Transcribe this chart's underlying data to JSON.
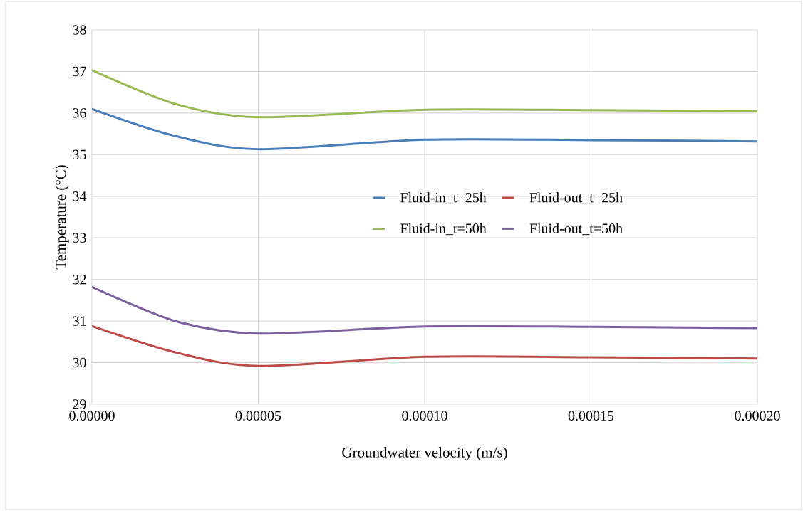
{
  "chart_data": {
    "type": "line",
    "xlabel": "Groundwater velocity (m/s)",
    "ylabel": "Temperature (°C)",
    "x": [
      0,
      2.5e-05,
      5e-05,
      0.0001,
      0.00015,
      0.0002
    ],
    "series": [
      {
        "name": "Fluid-in_t=25h",
        "color": "#4a7ebb",
        "values": [
          36.1,
          35.45,
          35.13,
          35.36,
          35.35,
          35.32
        ]
      },
      {
        "name": "Fluid-out_t=25h",
        "color": "#be4b48",
        "values": [
          30.88,
          30.25,
          29.92,
          30.14,
          30.13,
          30.1
        ]
      },
      {
        "name": "Fluid-in_t=50h",
        "color": "#98b954",
        "values": [
          37.03,
          36.22,
          35.9,
          36.08,
          36.07,
          36.04
        ]
      },
      {
        "name": "Fluid-out_t=50h",
        "color": "#7d60a0",
        "values": [
          31.82,
          31.0,
          30.7,
          30.87,
          30.86,
          30.83
        ]
      }
    ],
    "xlim": [
      0,
      0.0002
    ],
    "xticks": [
      {
        "value": 0,
        "label": "0.00000"
      },
      {
        "value": 5e-05,
        "label": "0.00005"
      },
      {
        "value": 0.0001,
        "label": "0.00010"
      },
      {
        "value": 0.00015,
        "label": "0.00015"
      },
      {
        "value": 0.0002,
        "label": "0.00020"
      }
    ],
    "ylim": [
      29,
      38
    ],
    "yticks": [
      29,
      30,
      31,
      32,
      33,
      34,
      35,
      36,
      37,
      38
    ],
    "grid": true,
    "legend": "center",
    "marker": "none",
    "line_style": "solid"
  }
}
